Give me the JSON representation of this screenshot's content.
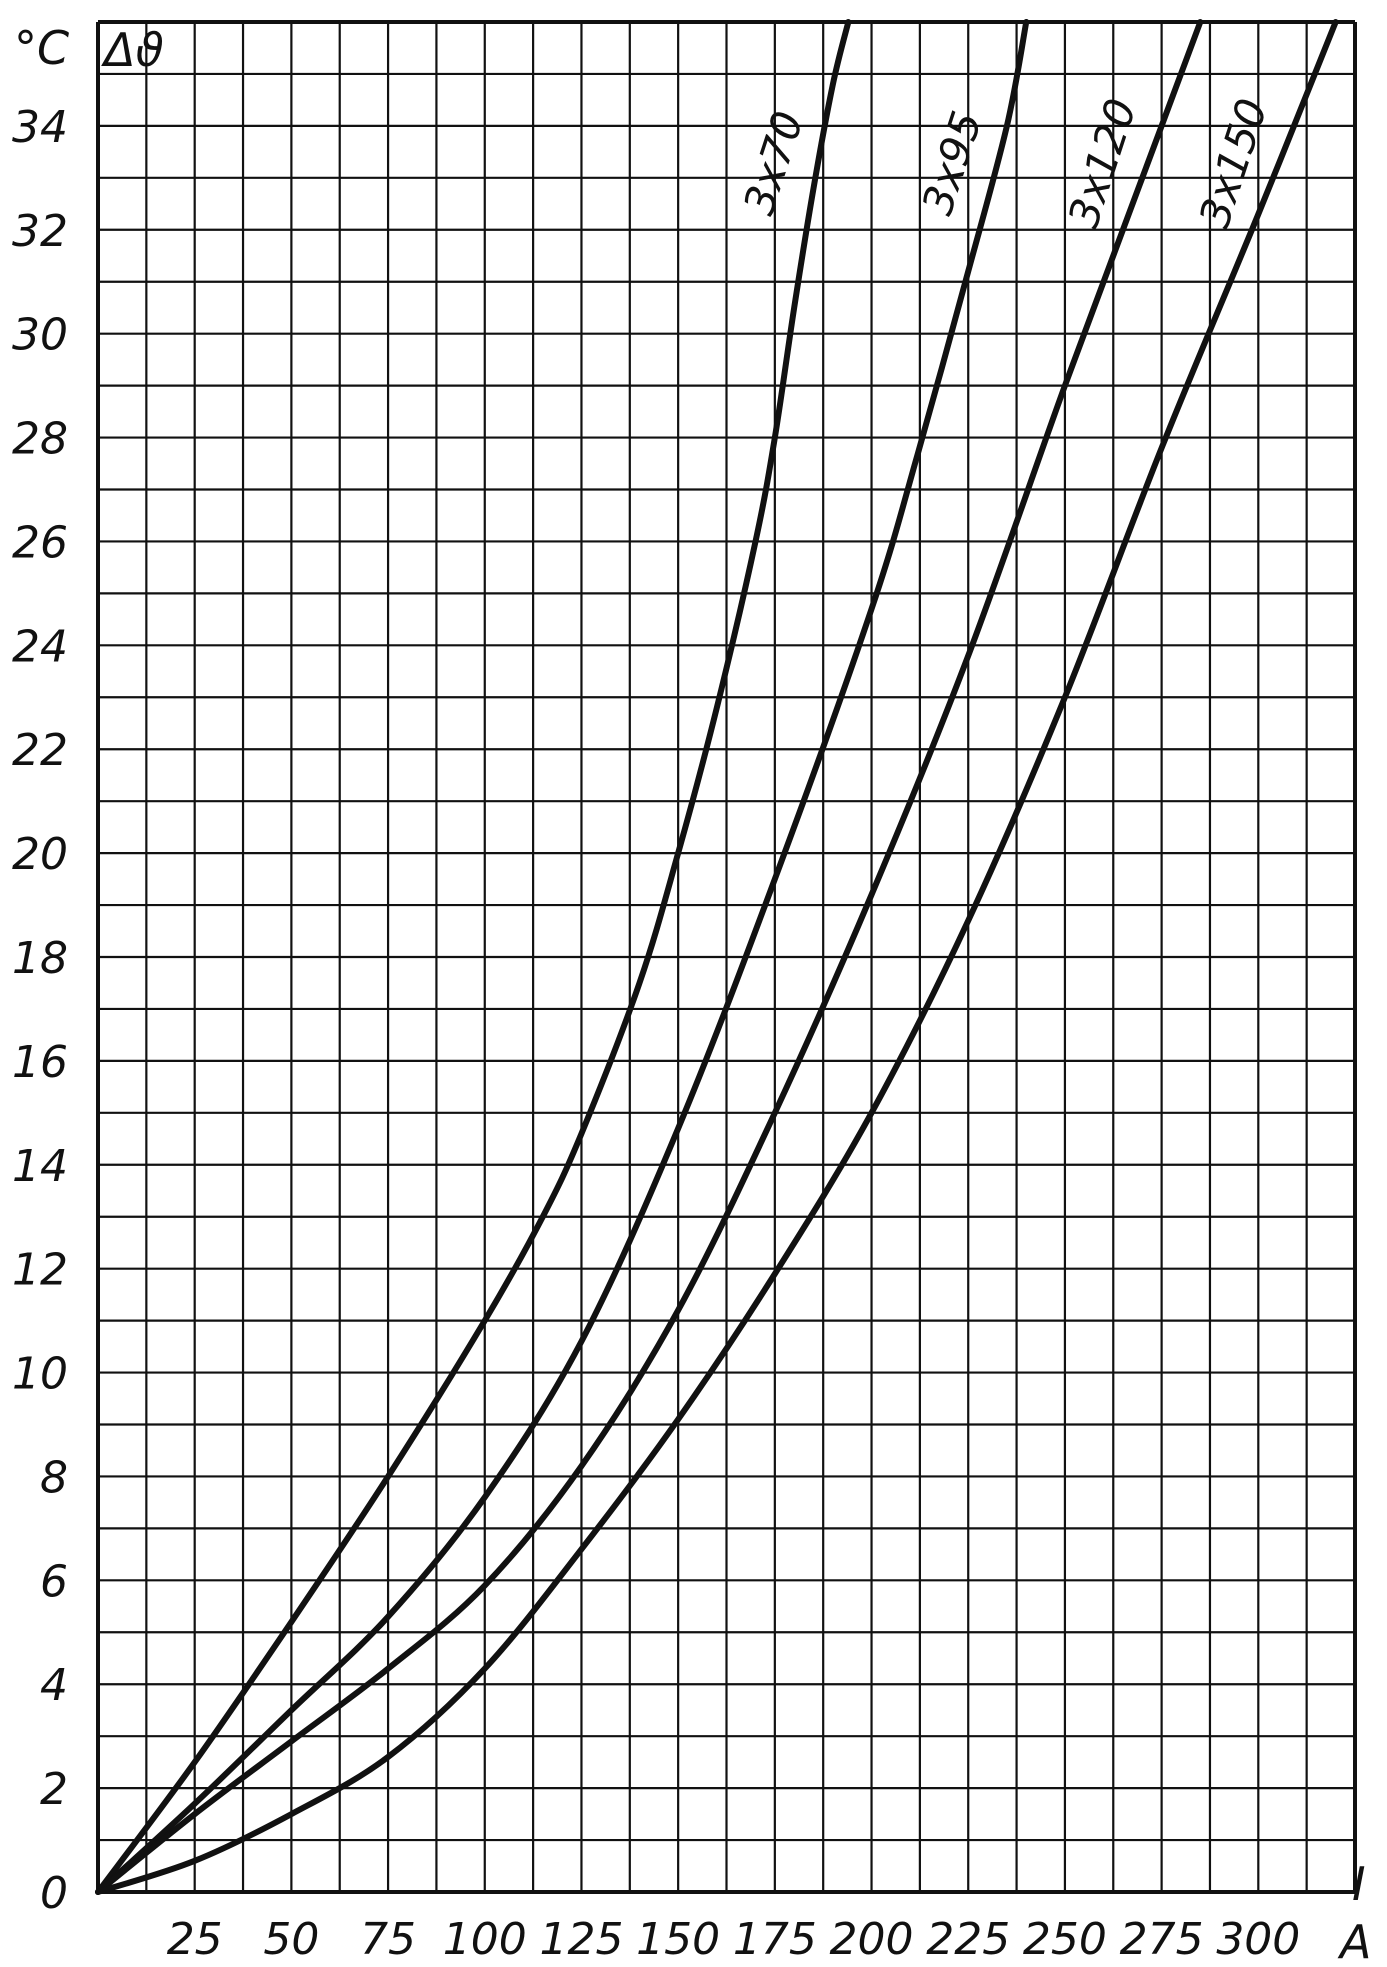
{
  "chart_data": {
    "type": "line",
    "title": "",
    "xlabel": "I",
    "x_unit": "A",
    "ylabel": "Δϑ",
    "y_unit": "°C",
    "xlim": [
      0,
      325
    ],
    "ylim": [
      0,
      36
    ],
    "x_ticks": [
      25,
      50,
      75,
      100,
      125,
      150,
      175,
      200,
      225,
      250,
      275,
      300
    ],
    "y_ticks": [
      0,
      2,
      4,
      6,
      8,
      10,
      12,
      14,
      16,
      18,
      20,
      22,
      24,
      26,
      28,
      30,
      32,
      34
    ],
    "grid": true,
    "series": [
      {
        "name": "3x70",
        "x": [
          0,
          25,
          50,
          75,
          100,
          115,
          125,
          140,
          150,
          160,
          170,
          175,
          180,
          185,
          190,
          194
        ],
        "y": [
          0,
          2.5,
          5.2,
          8.0,
          11.0,
          13.0,
          14.6,
          17.5,
          20.0,
          22.8,
          26.0,
          28.0,
          30.5,
          32.8,
          34.8,
          36
        ]
      },
      {
        "name": "3x95",
        "x": [
          0,
          25,
          50,
          75,
          100,
          125,
          150,
          175,
          200,
          212,
          225,
          235,
          240
        ],
        "y": [
          0,
          1.7,
          3.5,
          5.3,
          7.6,
          10.6,
          14.7,
          19.5,
          24.7,
          27.7,
          31.2,
          34.0,
          36
        ]
      },
      {
        "name": "3x120",
        "x": [
          0,
          25,
          50,
          75,
          100,
          125,
          150,
          175,
          200,
          225,
          250,
          270,
          285
        ],
        "y": [
          0,
          1.5,
          2.9,
          4.3,
          5.9,
          8.2,
          11.2,
          15.0,
          19.2,
          23.8,
          29.0,
          33.0,
          36
        ]
      },
      {
        "name": "3x150",
        "x": [
          0,
          25,
          50,
          75,
          100,
          125,
          150,
          175,
          200,
          225,
          250,
          275,
          300,
          320
        ],
        "y": [
          0,
          0.6,
          1.5,
          2.6,
          4.3,
          6.6,
          9.1,
          11.9,
          15.0,
          18.7,
          23.0,
          27.8,
          32.3,
          36
        ]
      }
    ]
  }
}
